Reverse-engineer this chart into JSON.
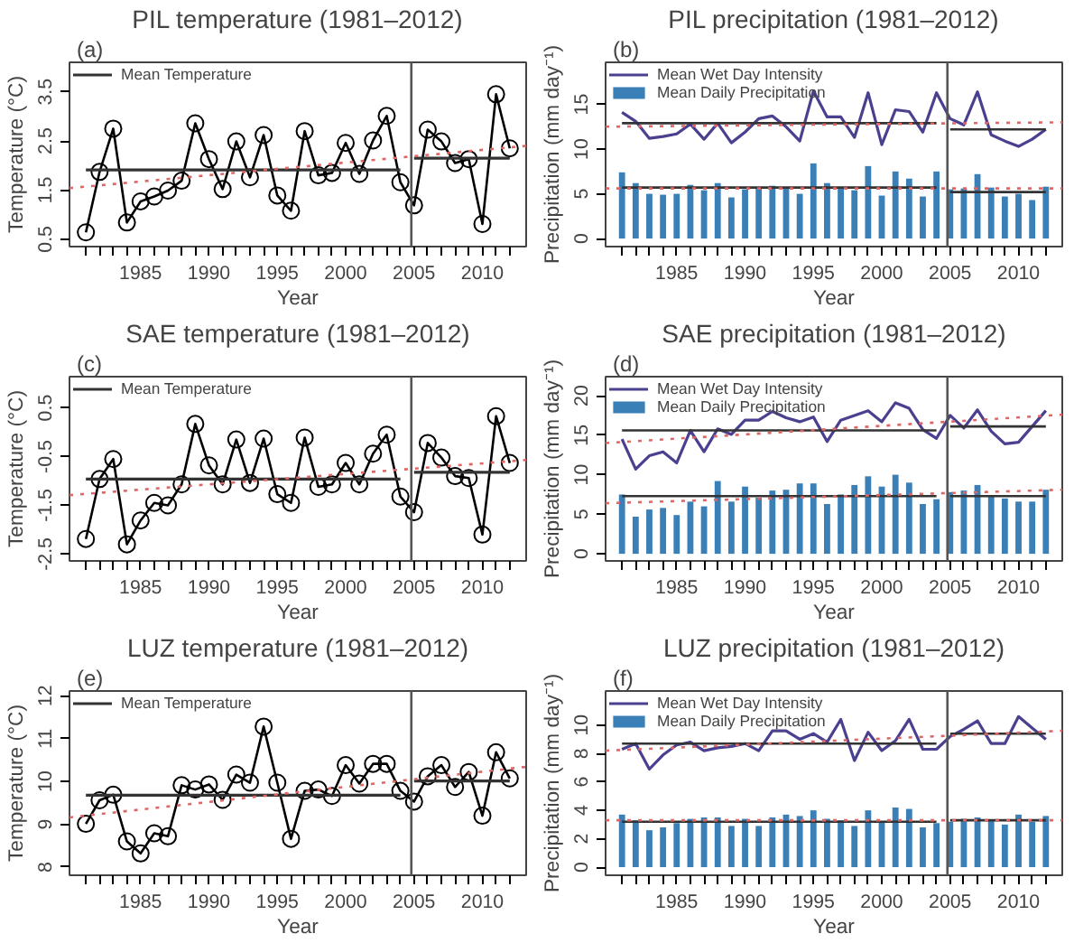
{
  "chart_data": [
    {
      "type": "line",
      "title": "PIL temperature (1981–2012)",
      "xlabel": "Year",
      "ylabel": "Temperature (°C)",
      "annotations": [
        "(a)"
      ],
      "legend": "top left",
      "xlim": [
        1979.8,
        2013.2
      ],
      "ylim": [
        0.35,
        4.1
      ],
      "yticks": [
        0.5,
        1.5,
        2.5,
        3.5
      ],
      "xticks": [
        {
          "value": 1981,
          "label": null
        },
        {
          "value": 1982,
          "label": null
        },
        {
          "value": 1983,
          "label": null
        },
        {
          "value": 1984,
          "label": null
        },
        1985,
        {
          "value": 1986,
          "label": null
        },
        {
          "value": 1987,
          "label": null
        },
        {
          "value": 1988,
          "label": null
        },
        {
          "value": 1989,
          "label": null
        },
        1990,
        {
          "value": 1991,
          "label": null
        },
        {
          "value": 1992,
          "label": null
        },
        {
          "value": 1993,
          "label": null
        },
        {
          "value": 1994,
          "label": null
        },
        1995,
        {
          "value": 1996,
          "label": null
        },
        {
          "value": 1997,
          "label": null
        },
        {
          "value": 1998,
          "label": null
        },
        {
          "value": 1999,
          "label": null
        },
        2000,
        {
          "value": 2001,
          "label": null
        },
        {
          "value": 2002,
          "label": null
        },
        {
          "value": 2003,
          "label": null
        },
        {
          "value": 2004,
          "label": null
        },
        2005,
        {
          "value": 2006,
          "label": null
        },
        {
          "value": 2007,
          "label": null
        },
        {
          "value": 2008,
          "label": null
        },
        {
          "value": 2009,
          "label": null
        },
        2010,
        {
          "value": 2011,
          "label": null
        },
        {
          "value": 2012,
          "label": null
        }
      ],
      "x": [
        1981,
        1982,
        1983,
        1984,
        1985,
        1986,
        1987,
        1988,
        1989,
        1990,
        1991,
        1992,
        1993,
        1994,
        1995,
        1996,
        1997,
        1998,
        1999,
        2000,
        2001,
        2002,
        2003,
        2004,
        2005,
        2006,
        2007,
        2008,
        2009,
        2010,
        2011,
        2012
      ],
      "ref_lines": [
        {
          "axis": "x",
          "value": 2004.8,
          "color": "#555555"
        }
      ],
      "series": [
        {
          "color": "#000000",
          "marker": "circle",
          "values": [
            0.64,
            1.87,
            2.75,
            0.84,
            1.27,
            1.37,
            1.49,
            1.69,
            2.86,
            2.13,
            1.52,
            2.49,
            1.76,
            2.62,
            1.39,
            1.08,
            2.7,
            1.8,
            1.85,
            2.46,
            1.83,
            2.51,
            3.01,
            1.66,
            1.19,
            2.73,
            2.49,
            2.05,
            2.13,
            0.81,
            3.45,
            2.35
          ]
        },
        {
          "name": "Mean Temperature",
          "color": "#333333",
          "x": [
            1981,
            2004,
            2004.5,
            2005,
            2012
          ],
          "values": [
            1.91,
            1.91,
            null,
            2.15,
            2.15
          ]
        },
        {
          "color": "#e06666",
          "line_style": "dotted",
          "x": [
            1979.8,
            2013.2
          ],
          "values": [
            1.54,
            2.4
          ]
        }
      ]
    },
    {
      "type": "bar",
      "title": "PIL precipitation (1981–2012)",
      "xlabel": "Year",
      "ylabel": "Precipitation (mm day⁻¹)",
      "annotations": [
        "(b)"
      ],
      "legend": "top left",
      "xlim": [
        1979.8,
        2013.2
      ],
      "ylim": [
        -0.9,
        19.7
      ],
      "yticks": [
        0,
        5,
        10,
        15
      ],
      "xticks": [
        {
          "value": 1981,
          "label": null
        },
        {
          "value": 1982,
          "label": null
        },
        {
          "value": 1983,
          "label": null
        },
        {
          "value": 1984,
          "label": null
        },
        1985,
        {
          "value": 1986,
          "label": null
        },
        {
          "value": 1987,
          "label": null
        },
        {
          "value": 1988,
          "label": null
        },
        {
          "value": 1989,
          "label": null
        },
        1990,
        {
          "value": 1991,
          "label": null
        },
        {
          "value": 1992,
          "label": null
        },
        {
          "value": 1993,
          "label": null
        },
        {
          "value": 1994,
          "label": null
        },
        1995,
        {
          "value": 1996,
          "label": null
        },
        {
          "value": 1997,
          "label": null
        },
        {
          "value": 1998,
          "label": null
        },
        {
          "value": 1999,
          "label": null
        },
        2000,
        {
          "value": 2001,
          "label": null
        },
        {
          "value": 2002,
          "label": null
        },
        {
          "value": 2003,
          "label": null
        },
        {
          "value": 2004,
          "label": null
        },
        2005,
        {
          "value": 2006,
          "label": null
        },
        {
          "value": 2007,
          "label": null
        },
        {
          "value": 2008,
          "label": null
        },
        {
          "value": 2009,
          "label": null
        },
        2010,
        {
          "value": 2011,
          "label": null
        },
        {
          "value": 2012,
          "label": null
        }
      ],
      "x": [
        1981,
        1982,
        1983,
        1984,
        1985,
        1986,
        1987,
        1988,
        1989,
        1990,
        1991,
        1992,
        1993,
        1994,
        1995,
        1996,
        1997,
        1998,
        1999,
        2000,
        2001,
        2002,
        2003,
        2004,
        2005,
        2006,
        2007,
        2008,
        2009,
        2010,
        2011,
        2012
      ],
      "ref_lines": [
        {
          "axis": "x",
          "value": 2004.8,
          "color": "#555555"
        }
      ],
      "series": [
        {
          "name": "Mean Daily Precipitation",
          "color": "#3a7fb5",
          "values": [
            7.4,
            6.2,
            5.0,
            4.9,
            5.0,
            6.0,
            5.4,
            6.2,
            4.6,
            5.5,
            5.6,
            5.9,
            5.7,
            5.0,
            8.4,
            6.2,
            5.6,
            5.4,
            8.1,
            4.8,
            7.5,
            6.7,
            4.7,
            7.5,
            5.5,
            5.6,
            7.2,
            5.7,
            4.7,
            5.0,
            4.3,
            5.8
          ]
        },
        {
          "type": "line",
          "name": "Mean Wet Day Intensity",
          "color": "#4a4090",
          "values": [
            14.1,
            13.1,
            11.2,
            11.4,
            11.7,
            12.8,
            11.1,
            12.9,
            10.7,
            11.9,
            13.4,
            13.7,
            12.5,
            10.9,
            16.5,
            13.6,
            13.6,
            11.3,
            16.3,
            10.5,
            14.4,
            14.2,
            11.9,
            16.3,
            13.4,
            12.7,
            16.4,
            11.6,
            10.9,
            10.3,
            11.1,
            12.2
          ]
        },
        {
          "type": "line",
          "color": "#333333",
          "x": [
            1981,
            2004,
            2004.5,
            2005,
            2012
          ],
          "values": [
            12.9,
            12.9,
            null,
            12.2,
            12.2
          ]
        },
        {
          "type": "line",
          "color": "#333333",
          "x": [
            1981,
            2004,
            2004.5,
            2005,
            2012
          ],
          "values": [
            5.7,
            5.7,
            null,
            5.2,
            5.2
          ]
        },
        {
          "type": "line",
          "color": "#e06666",
          "line_style": "dotted",
          "x": [
            1979.8,
            2013.2
          ],
          "values": [
            12.5,
            13.0
          ]
        },
        {
          "type": "line",
          "color": "#e06666",
          "line_style": "dotted",
          "x": [
            1979.8,
            2013.2
          ],
          "values": [
            5.6,
            5.6
          ]
        }
      ]
    },
    {
      "type": "line",
      "title": "SAE temperature (1981–2012)",
      "xlabel": "Year",
      "ylabel": "Temperature (°C)",
      "annotations": [
        "(c)"
      ],
      "legend": "top left",
      "xlim": [
        1979.8,
        2013.2
      ],
      "ylim": [
        -2.64,
        1.14
      ],
      "yticks": [
        -2.5,
        -1.5,
        -0.5,
        0.5
      ],
      "xticks": [
        {
          "value": 1981,
          "label": null
        },
        {
          "value": 1982,
          "label": null
        },
        {
          "value": 1983,
          "label": null
        },
        {
          "value": 1984,
          "label": null
        },
        1985,
        {
          "value": 1986,
          "label": null
        },
        {
          "value": 1987,
          "label": null
        },
        {
          "value": 1988,
          "label": null
        },
        {
          "value": 1989,
          "label": null
        },
        1990,
        {
          "value": 1991,
          "label": null
        },
        {
          "value": 1992,
          "label": null
        },
        {
          "value": 1993,
          "label": null
        },
        {
          "value": 1994,
          "label": null
        },
        1995,
        {
          "value": 1996,
          "label": null
        },
        {
          "value": 1997,
          "label": null
        },
        {
          "value": 1998,
          "label": null
        },
        {
          "value": 1999,
          "label": null
        },
        2000,
        {
          "value": 2001,
          "label": null
        },
        {
          "value": 2002,
          "label": null
        },
        {
          "value": 2003,
          "label": null
        },
        {
          "value": 2004,
          "label": null
        },
        2005,
        {
          "value": 2006,
          "label": null
        },
        {
          "value": 2007,
          "label": null
        },
        {
          "value": 2008,
          "label": null
        },
        {
          "value": 2009,
          "label": null
        },
        2010,
        {
          "value": 2011,
          "label": null
        },
        {
          "value": 2012,
          "label": null
        }
      ],
      "x": [
        1981,
        1982,
        1983,
        1984,
        1985,
        1986,
        1987,
        1988,
        1989,
        1990,
        1991,
        1992,
        1993,
        1994,
        1995,
        1996,
        1997,
        1998,
        1999,
        2000,
        2001,
        2002,
        2003,
        2004,
        2005,
        2006,
        2007,
        2008,
        2009,
        2010,
        2011,
        2012
      ],
      "ref_lines": [
        {
          "axis": "x",
          "value": 2004.8,
          "color": "#555555"
        }
      ],
      "series": [
        {
          "color": "#000000",
          "marker": "circle",
          "values": [
            -2.19,
            -0.96,
            -0.55,
            -2.3,
            -1.81,
            -1.45,
            -1.5,
            -1.07,
            0.17,
            -0.68,
            -1.07,
            -0.15,
            -1.04,
            -0.13,
            -1.27,
            -1.45,
            -0.11,
            -1.12,
            -1.07,
            -0.63,
            -1.07,
            -0.44,
            -0.05,
            -1.32,
            -1.64,
            -0.22,
            -0.52,
            -0.9,
            -0.94,
            -2.1,
            0.33,
            -0.63
          ]
        },
        {
          "name": "Mean Temperature",
          "color": "#333333",
          "x": [
            1981,
            2004,
            2004.5,
            2005,
            2012
          ],
          "values": [
            -0.96,
            -0.96,
            null,
            -0.82,
            -0.82
          ]
        },
        {
          "color": "#e06666",
          "line_style": "dotted",
          "x": [
            1979.8,
            2013.2
          ],
          "values": [
            -1.29,
            -0.57
          ]
        }
      ]
    },
    {
      "type": "bar",
      "title": "SAE precipitation (1981–2012)",
      "xlabel": "Year",
      "ylabel": "Precipitation (mm day⁻¹)",
      "annotations": [
        "(d)"
      ],
      "legend": "top left",
      "xlim": [
        1979.8,
        2013.2
      ],
      "ylim": [
        -0.9,
        22.4
      ],
      "yticks": [
        0,
        5,
        10,
        15,
        20
      ],
      "xticks": [
        {
          "value": 1981,
          "label": null
        },
        {
          "value": 1982,
          "label": null
        },
        {
          "value": 1983,
          "label": null
        },
        {
          "value": 1984,
          "label": null
        },
        1985,
        {
          "value": 1986,
          "label": null
        },
        {
          "value": 1987,
          "label": null
        },
        {
          "value": 1988,
          "label": null
        },
        {
          "value": 1989,
          "label": null
        },
        1990,
        {
          "value": 1991,
          "label": null
        },
        {
          "value": 1992,
          "label": null
        },
        {
          "value": 1993,
          "label": null
        },
        {
          "value": 1994,
          "label": null
        },
        1995,
        {
          "value": 1996,
          "label": null
        },
        {
          "value": 1997,
          "label": null
        },
        {
          "value": 1998,
          "label": null
        },
        {
          "value": 1999,
          "label": null
        },
        2000,
        {
          "value": 2001,
          "label": null
        },
        {
          "value": 2002,
          "label": null
        },
        {
          "value": 2003,
          "label": null
        },
        {
          "value": 2004,
          "label": null
        },
        2005,
        {
          "value": 2006,
          "label": null
        },
        {
          "value": 2007,
          "label": null
        },
        {
          "value": 2008,
          "label": null
        },
        {
          "value": 2009,
          "label": null
        },
        2010,
        {
          "value": 2011,
          "label": null
        },
        {
          "value": 2012,
          "label": null
        }
      ],
      "x": [
        1981,
        1982,
        1983,
        1984,
        1985,
        1986,
        1987,
        1988,
        1989,
        1990,
        1991,
        1992,
        1993,
        1994,
        1995,
        1996,
        1997,
        1998,
        1999,
        2000,
        2001,
        2002,
        2003,
        2004,
        2005,
        2006,
        2007,
        2008,
        2009,
        2010,
        2011,
        2012
      ],
      "ref_lines": [
        {
          "axis": "x",
          "value": 2004.8,
          "color": "#555555"
        }
      ],
      "series": [
        {
          "name": "Mean Daily Precipitation",
          "color": "#3a7fb5",
          "values": [
            7.5,
            4.7,
            5.6,
            5.8,
            4.9,
            6.6,
            6.0,
            9.2,
            6.6,
            8.5,
            7.1,
            8.0,
            8.1,
            8.9,
            8.9,
            6.3,
            7.5,
            8.7,
            9.8,
            8.5,
            10.0,
            9.0,
            6.3,
            6.9,
            7.8,
            8.0,
            8.7,
            7.3,
            7.0,
            6.6,
            6.6,
            8.1
          ]
        },
        {
          "type": "line",
          "name": "Mean Wet Day Intensity",
          "color": "#4a4090",
          "values": [
            14.5,
            10.7,
            12.4,
            12.9,
            11.5,
            15.6,
            12.9,
            15.8,
            15.1,
            16.9,
            16.9,
            18.0,
            17.2,
            16.7,
            17.3,
            14.2,
            16.9,
            17.5,
            18.1,
            16.7,
            19.1,
            18.4,
            15.7,
            14.6,
            17.5,
            15.9,
            18.2,
            15.5,
            13.9,
            14.1,
            16.1,
            18.1
          ]
        },
        {
          "type": "line",
          "color": "#333333",
          "x": [
            1981,
            2004,
            2004.5,
            2005,
            2012
          ],
          "values": [
            15.6,
            15.6,
            null,
            16.1,
            16.1
          ]
        },
        {
          "type": "line",
          "color": "#333333",
          "x": [
            1981,
            2004,
            2004.5,
            2005,
            2012
          ],
          "values": [
            7.3,
            7.3,
            null,
            7.3,
            7.3
          ]
        },
        {
          "type": "line",
          "color": "#e06666",
          "line_style": "dotted",
          "x": [
            1979.8,
            2013.2
          ],
          "values": [
            14.0,
            17.6
          ]
        },
        {
          "type": "line",
          "color": "#e06666",
          "line_style": "dotted",
          "x": [
            1979.8,
            2013.2
          ],
          "values": [
            6.4,
            8.1
          ]
        }
      ]
    },
    {
      "type": "line",
      "title": "LUZ temperature (1981–2012)",
      "xlabel": "Year",
      "ylabel": "Temperature (°C)",
      "annotations": [
        "(e)"
      ],
      "legend": "top left",
      "xlim": [
        1979.8,
        2013.2
      ],
      "ylim": [
        7.81,
        12.11
      ],
      "yticks": [
        8,
        9,
        10,
        11,
        12
      ],
      "xticks": [
        {
          "value": 1981,
          "label": null
        },
        {
          "value": 1982,
          "label": null
        },
        {
          "value": 1983,
          "label": null
        },
        {
          "value": 1984,
          "label": null
        },
        1985,
        {
          "value": 1986,
          "label": null
        },
        {
          "value": 1987,
          "label": null
        },
        {
          "value": 1988,
          "label": null
        },
        {
          "value": 1989,
          "label": null
        },
        1990,
        {
          "value": 1991,
          "label": null
        },
        {
          "value": 1992,
          "label": null
        },
        {
          "value": 1993,
          "label": null
        },
        {
          "value": 1994,
          "label": null
        },
        1995,
        {
          "value": 1996,
          "label": null
        },
        {
          "value": 1997,
          "label": null
        },
        {
          "value": 1998,
          "label": null
        },
        {
          "value": 1999,
          "label": null
        },
        2000,
        {
          "value": 2001,
          "label": null
        },
        {
          "value": 2002,
          "label": null
        },
        {
          "value": 2003,
          "label": null
        },
        {
          "value": 2004,
          "label": null
        },
        2005,
        {
          "value": 2006,
          "label": null
        },
        {
          "value": 2007,
          "label": null
        },
        {
          "value": 2008,
          "label": null
        },
        {
          "value": 2009,
          "label": null
        },
        2010,
        {
          "value": 2011,
          "label": null
        },
        {
          "value": 2012,
          "label": null
        }
      ],
      "x": [
        1981,
        1982,
        1983,
        1984,
        1985,
        1986,
        1987,
        1988,
        1989,
        1990,
        1991,
        1992,
        1993,
        1994,
        1995,
        1996,
        1997,
        1998,
        1999,
        2000,
        2001,
        2002,
        2003,
        2004,
        2005,
        2006,
        2007,
        2008,
        2009,
        2010,
        2011,
        2012
      ],
      "ref_lines": [
        {
          "axis": "x",
          "value": 2004.8,
          "color": "#555555"
        }
      ],
      "series": [
        {
          "color": "#000000",
          "marker": "circle",
          "values": [
            9.01,
            9.56,
            9.69,
            8.6,
            8.32,
            8.79,
            8.72,
            9.91,
            9.81,
            9.93,
            9.57,
            10.16,
            9.97,
            11.28,
            9.97,
            8.66,
            9.78,
            9.81,
            9.66,
            10.38,
            9.95,
            10.41,
            10.41,
            9.78,
            9.53,
            10.12,
            10.38,
            9.87,
            10.22,
            9.2,
            10.68,
            10.07
          ]
        },
        {
          "name": "Mean Temperature",
          "color": "#333333",
          "x": [
            1981,
            2004,
            2004.5,
            2005,
            2012
          ],
          "values": [
            9.68,
            9.68,
            null,
            10.01,
            10.01
          ]
        },
        {
          "color": "#e06666",
          "line_style": "dotted",
          "x": [
            1979.8,
            2013.2
          ],
          "values": [
            9.16,
            10.34
          ]
        }
      ]
    },
    {
      "type": "bar",
      "title": "LUZ precipitation (1981–2012)",
      "xlabel": "Year",
      "ylabel": "Precipitation (mm day⁻¹)",
      "annotations": [
        "(f)"
      ],
      "legend": "top left",
      "xlim": [
        1979.8,
        2013.2
      ],
      "ylim": [
        -0.57,
        12.4
      ],
      "yticks": [
        0,
        2,
        4,
        6,
        8,
        10
      ],
      "xticks": [
        {
          "value": 1981,
          "label": null
        },
        {
          "value": 1982,
          "label": null
        },
        {
          "value": 1983,
          "label": null
        },
        {
          "value": 1984,
          "label": null
        },
        1985,
        {
          "value": 1986,
          "label": null
        },
        {
          "value": 1987,
          "label": null
        },
        {
          "value": 1988,
          "label": null
        },
        {
          "value": 1989,
          "label": null
        },
        1990,
        {
          "value": 1991,
          "label": null
        },
        {
          "value": 1992,
          "label": null
        },
        {
          "value": 1993,
          "label": null
        },
        {
          "value": 1994,
          "label": null
        },
        1995,
        {
          "value": 1996,
          "label": null
        },
        {
          "value": 1997,
          "label": null
        },
        {
          "value": 1998,
          "label": null
        },
        {
          "value": 1999,
          "label": null
        },
        2000,
        {
          "value": 2001,
          "label": null
        },
        {
          "value": 2002,
          "label": null
        },
        {
          "value": 2003,
          "label": null
        },
        {
          "value": 2004,
          "label": null
        },
        2005,
        {
          "value": 2006,
          "label": null
        },
        {
          "value": 2007,
          "label": null
        },
        {
          "value": 2008,
          "label": null
        },
        {
          "value": 2009,
          "label": null
        },
        2010,
        {
          "value": 2011,
          "label": null
        },
        {
          "value": 2012,
          "label": null
        }
      ],
      "x": [
        1981,
        1982,
        1983,
        1984,
        1985,
        1986,
        1987,
        1988,
        1989,
        1990,
        1991,
        1992,
        1993,
        1994,
        1995,
        1996,
        1997,
        1998,
        1999,
        2000,
        2001,
        2002,
        2003,
        2004,
        2005,
        2006,
        2007,
        2008,
        2009,
        2010,
        2011,
        2012
      ],
      "ref_lines": [
        {
          "axis": "x",
          "value": 2004.8,
          "color": "#555555"
        }
      ],
      "series": [
        {
          "name": "Mean Daily Precipitation",
          "color": "#3a7fb5",
          "values": [
            3.7,
            3.3,
            2.6,
            2.8,
            3.1,
            3.4,
            3.5,
            3.5,
            2.9,
            3.4,
            2.9,
            3.5,
            3.7,
            3.6,
            4.0,
            3.4,
            3.3,
            2.9,
            4.0,
            3.2,
            4.2,
            4.1,
            2.8,
            3.1,
            3.2,
            3.4,
            3.5,
            3.3,
            3.0,
            3.7,
            3.2,
            3.6
          ]
        },
        {
          "type": "line",
          "name": "Mean Wet Day Intensity",
          "color": "#4a4090",
          "values": [
            8.3,
            8.7,
            6.9,
            7.9,
            8.6,
            8.8,
            8.2,
            8.4,
            8.5,
            8.7,
            8.2,
            9.6,
            9.6,
            9.0,
            9.4,
            8.8,
            10.4,
            7.5,
            9.5,
            8.2,
            8.9,
            10.4,
            8.3,
            8.3,
            9.2,
            9.7,
            10.3,
            8.7,
            8.7,
            10.6,
            9.8,
            9.0
          ]
        },
        {
          "type": "line",
          "color": "#333333",
          "x": [
            1981,
            2004,
            2004.5,
            2005,
            2012
          ],
          "values": [
            8.7,
            8.7,
            null,
            9.4,
            9.4
          ]
        },
        {
          "type": "line",
          "color": "#333333",
          "x": [
            1981,
            2004,
            2004.5,
            2005,
            2012
          ],
          "values": [
            3.2,
            3.2,
            null,
            3.3,
            3.3
          ]
        },
        {
          "type": "line",
          "color": "#e06666",
          "line_style": "dotted",
          "x": [
            1979.8,
            2013.2
          ],
          "values": [
            8.2,
            9.6
          ]
        },
        {
          "type": "line",
          "color": "#e06666",
          "line_style": "dotted",
          "x": [
            1979.8,
            2013.2
          ],
          "values": [
            3.3,
            3.3
          ]
        }
      ]
    }
  ]
}
